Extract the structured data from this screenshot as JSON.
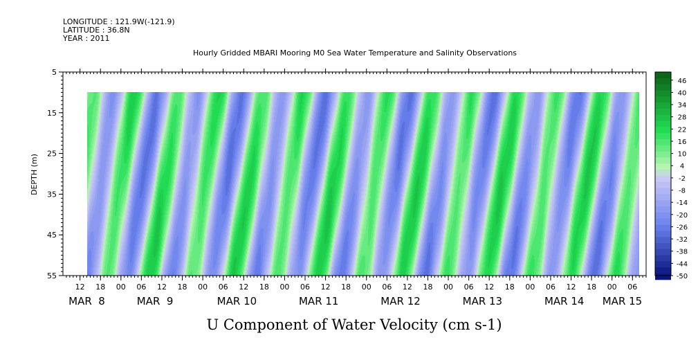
{
  "header": {
    "longitude": "LONGITUDE : 121.9W(-121.9)",
    "latitude": "LATITUDE : 36.8N",
    "year": "YEAR : 2011"
  },
  "chart_data": {
    "type": "heatmap",
    "title": "Hourly Gridded MBARI Mooring M0 Sea Water Temperature and Salinity Observations",
    "xlabel": "",
    "ylabel": "DEPTH (m)",
    "variable_label": "U Component of Water Velocity (cm s-1)",
    "y_ticks": [
      "5",
      "15",
      "25",
      "35",
      "45",
      "55"
    ],
    "ylim": [
      55,
      5
    ],
    "y_data_range": [
      10,
      55
    ],
    "x_start_hour": 7,
    "x_end_hour": 178,
    "x_data_start_hour": 14,
    "x_data_end_hour": 176,
    "x_hour_ticks": [
      "12",
      "18",
      "00",
      "06",
      "12",
      "18",
      "00",
      "06",
      "12",
      "18",
      "00",
      "06",
      "12",
      "18",
      "00",
      "06",
      "12",
      "18",
      "00",
      "06",
      "12",
      "18",
      "00",
      "06",
      "12",
      "18",
      "00",
      "06"
    ],
    "x_hour_tick_values": [
      12,
      18,
      24,
      30,
      36,
      42,
      48,
      54,
      60,
      66,
      72,
      78,
      84,
      90,
      96,
      102,
      108,
      114,
      120,
      126,
      132,
      138,
      144,
      150,
      156,
      162,
      168,
      174
    ],
    "x_day_labels": [
      "MAR  8",
      "MAR  9",
      "MAR 10",
      "MAR 11",
      "MAR 12",
      "MAR 13",
      "MAR 14",
      "MAR 15"
    ],
    "x_day_label_hours": [
      14,
      34,
      58,
      82,
      106,
      130,
      154,
      171
    ],
    "colorbar": {
      "min": -50,
      "max": 50,
      "step": 3,
      "labels": [
        "46",
        "40",
        "34",
        "28",
        "22",
        "16",
        "10",
        "4",
        "-2",
        "-8",
        "-14",
        "-20",
        "-26",
        "-32",
        "-38",
        "-44",
        "-50"
      ],
      "colors": {
        "strong_positive": "#0a5c14",
        "positive": "#22e055",
        "weak_positive": "#b4f5b0",
        "weak_negative": "#c8c8f5",
        "negative": "#6a82ee",
        "strong_negative": "#0a1580"
      }
    },
    "grid": false,
    "legend": "right colorbar"
  }
}
